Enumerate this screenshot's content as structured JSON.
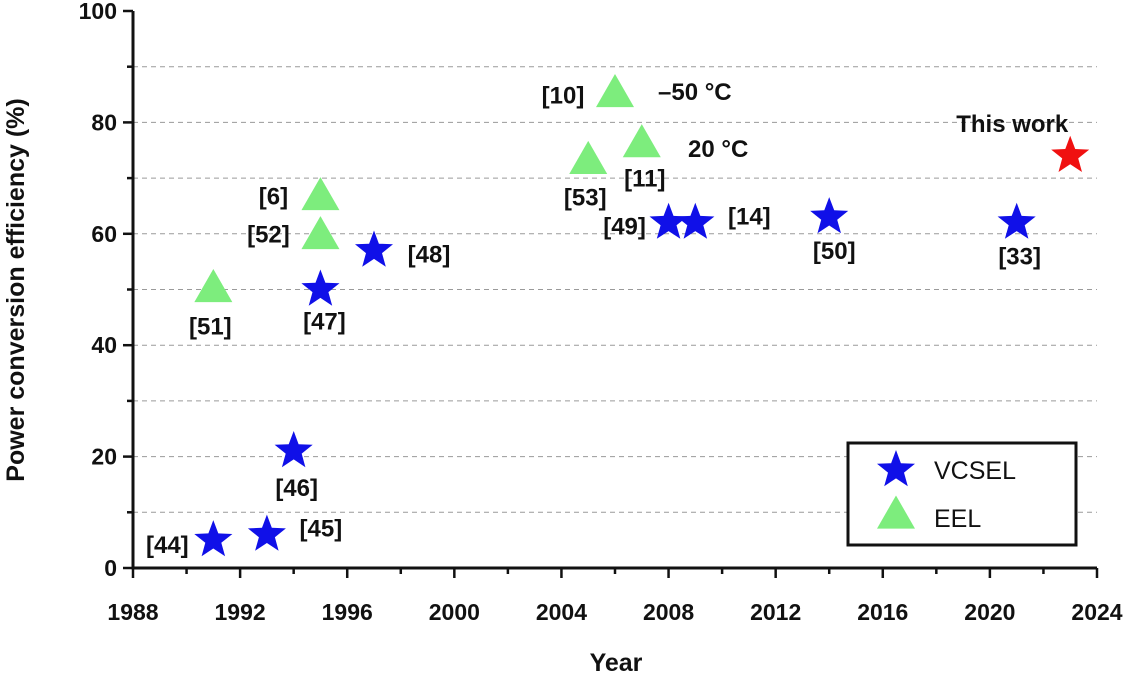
{
  "chart_data": {
    "type": "scatter",
    "xlabel": "Year",
    "ylabel": "Power conversion efficiency (%)",
    "xlim": [
      1988,
      2024
    ],
    "ylim": [
      0,
      100
    ],
    "xticks": [
      "1988",
      "1992",
      "1996",
      "2000",
      "2004",
      "2008",
      "2012",
      "2016",
      "2020",
      "2024"
    ],
    "yticks": [
      "0",
      "20",
      "40",
      "60",
      "80",
      "100"
    ],
    "grid": "horizontal dashed",
    "legend_position": "bottom-right",
    "series": [
      {
        "name": "VCSEL",
        "marker": "star",
        "color": "#1010e8",
        "points": [
          {
            "x": 1991,
            "y": 5,
            "label": "[44]"
          },
          {
            "x": 1993,
            "y": 6,
            "label": "[45]"
          },
          {
            "x": 1994,
            "y": 21,
            "label": "[46]"
          },
          {
            "x": 1995,
            "y": 50,
            "label": "[47]"
          },
          {
            "x": 1997,
            "y": 57,
            "label": "[48]"
          },
          {
            "x": 2008,
            "y": 62,
            "label": "[49]"
          },
          {
            "x": 2009,
            "y": 62,
            "label": "[14]"
          },
          {
            "x": 2014,
            "y": 63,
            "label": "[50]"
          },
          {
            "x": 2021,
            "y": 62,
            "label": "[33]"
          }
        ]
      },
      {
        "name": "EEL",
        "marker": "triangle",
        "color": "#7ded7d",
        "points": [
          {
            "x": 1991,
            "y": 50,
            "label": "[51]"
          },
          {
            "x": 1995,
            "y": 59.5,
            "label": "[52]"
          },
          {
            "x": 1995,
            "y": 66.5,
            "label": "[6]"
          },
          {
            "x": 2005,
            "y": 73,
            "label": "[53]"
          },
          {
            "x": 2006,
            "y": 85,
            "label": "[10]"
          },
          {
            "x": 2007,
            "y": 76,
            "label": "[11]"
          }
        ]
      },
      {
        "marker": "star",
        "color": "#f01010",
        "points": [
          {
            "x": 2023,
            "y": 74,
            "label": "This work"
          }
        ]
      }
    ],
    "annotations": [
      "–50 °C",
      "20 °C"
    ]
  }
}
